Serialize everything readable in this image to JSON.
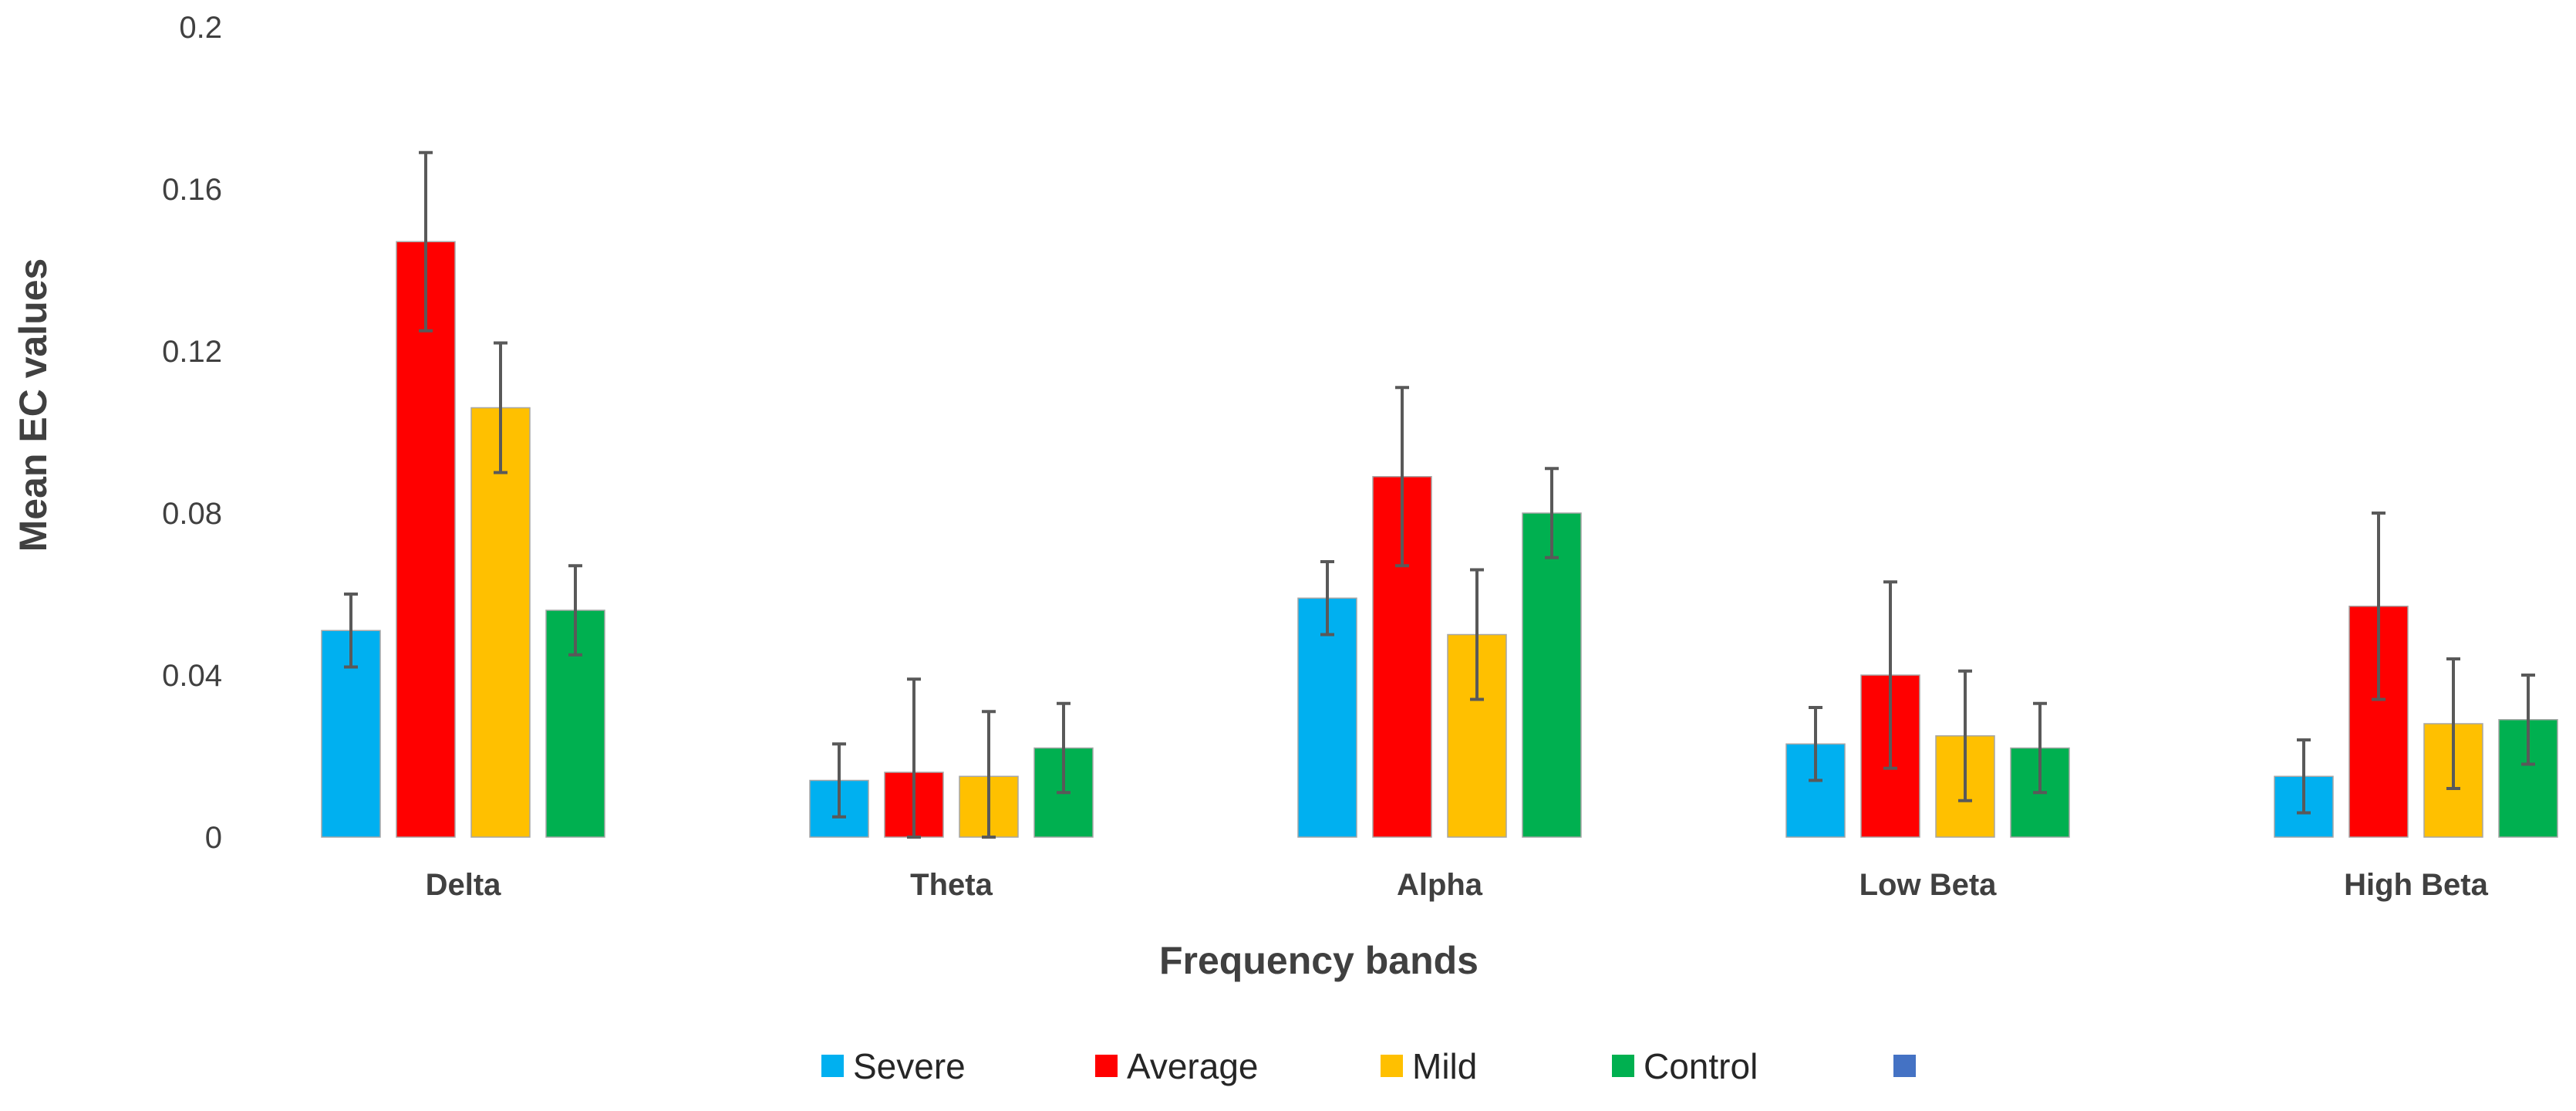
{
  "chart_data": {
    "type": "bar",
    "title": "",
    "xlabel": "Frequency bands",
    "ylabel": "Mean EC values",
    "ylim": [
      0,
      0.2
    ],
    "yticks": [
      "0",
      "0.04",
      "0.08",
      "0.12",
      "0.16",
      "0.2"
    ],
    "ytick_values": [
      0,
      0.04,
      0.08,
      0.12,
      0.16,
      0.2
    ],
    "grid": false,
    "legend_position": "bottom",
    "categories": [
      "Delta",
      "Theta",
      "Alpha",
      "Low Beta",
      "High Beta"
    ],
    "series": [
      {
        "name": "Severe",
        "color": "#00B0F0",
        "values": [
          0.051,
          0.014,
          0.059,
          0.023,
          0.015
        ],
        "errors": [
          0.009,
          0.009,
          0.009,
          0.009,
          0.009
        ]
      },
      {
        "name": "Average",
        "color": "#FF0000",
        "values": [
          0.147,
          0.016,
          0.089,
          0.04,
          0.057
        ],
        "errors": [
          0.022,
          0.023,
          0.022,
          0.023,
          0.023
        ]
      },
      {
        "name": "Mild",
        "color": "#FFC000",
        "values": [
          0.106,
          0.015,
          0.05,
          0.025,
          0.028
        ],
        "errors": [
          0.016,
          0.016,
          0.016,
          0.016,
          0.016
        ]
      },
      {
        "name": "Control",
        "color": "#00B050",
        "values": [
          0.056,
          0.022,
          0.08,
          0.022,
          0.029
        ],
        "errors": [
          0.011,
          0.011,
          0.011,
          0.011,
          0.011
        ]
      }
    ],
    "extra_legend_entries": [
      {
        "name": "",
        "color": "#4472C4"
      }
    ]
  }
}
